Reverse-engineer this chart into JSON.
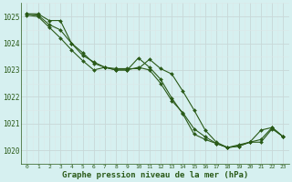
{
  "title": "Graphe pression niveau de la mer (hPa)",
  "bg_color": "#d6f0f0",
  "grid_color_major": "#c8d8d8",
  "grid_color_minor": "#dce8e8",
  "line_color": "#2a5a18",
  "xlim": [
    -0.5,
    23.5
  ],
  "ylim": [
    1019.5,
    1025.5
  ],
  "yticks": [
    1020,
    1021,
    1022,
    1023,
    1024,
    1025
  ],
  "xticks": [
    0,
    1,
    2,
    3,
    4,
    5,
    6,
    7,
    8,
    9,
    10,
    11,
    12,
    13,
    14,
    15,
    16,
    17,
    18,
    19,
    20,
    21,
    22,
    23
  ],
  "series": [
    [
      1025.1,
      1025.1,
      1024.85,
      1024.85,
      1024.0,
      1023.55,
      1023.3,
      1023.1,
      1023.05,
      1023.05,
      1023.05,
      1023.4,
      1023.05,
      1022.85,
      1022.2,
      1021.5,
      1020.75,
      1020.3,
      1020.1,
      1020.15,
      1020.3,
      1020.3,
      1020.8,
      1020.5
    ],
    [
      1025.1,
      1025.05,
      1024.7,
      1024.5,
      1024.0,
      1023.65,
      1023.25,
      1023.1,
      1023.0,
      1023.0,
      1023.1,
      1023.0,
      1022.5,
      1021.85,
      1021.4,
      1020.8,
      1020.5,
      1020.25,
      1020.1,
      1020.2,
      1020.3,
      1020.75,
      1020.85,
      1020.5
    ],
    [
      1025.05,
      1025.0,
      1024.6,
      1024.2,
      1023.75,
      1023.35,
      1023.0,
      1023.1,
      1023.0,
      1023.0,
      1023.45,
      1023.1,
      1022.65,
      1021.95,
      1021.35,
      1020.6,
      1020.4,
      1020.25,
      1020.1,
      1020.15,
      1020.3,
      1020.4,
      1020.85,
      1020.5
    ]
  ]
}
